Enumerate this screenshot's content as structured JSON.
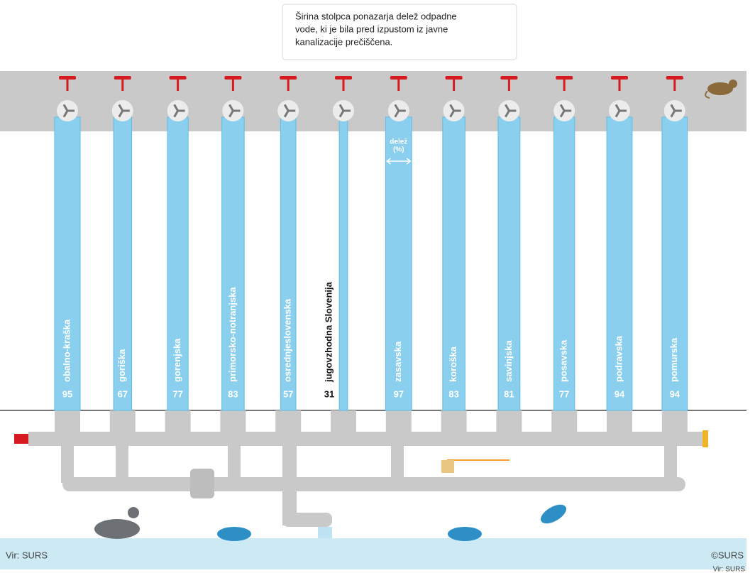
{
  "note": [
    "Širina stolpca ponazarja delež odpadne",
    "vode, ki je bila pred izpustom iz javne",
    "kanalizacije prečiščena."
  ],
  "chart_data": {
    "type": "bar",
    "categories": [
      "obalno-kraška",
      "goriška",
      "gorenjska",
      "primorsko-notranjska",
      "osrednjeslovenska",
      "jugovzhodna Slovenija",
      "zasavska",
      "koroška",
      "savinjska",
      "posavska",
      "podravska",
      "pomurska"
    ],
    "values": [
      95,
      67,
      77,
      83,
      57,
      31,
      97,
      83,
      81,
      77,
      94,
      94
    ],
    "color": "#8bcfee",
    "width_label": "delež",
    "width_unit": "(%)"
  },
  "footer": {
    "source": "Vir: SURS",
    "copyright": "©SURS",
    "source_clipped": "Vir: SURS"
  }
}
